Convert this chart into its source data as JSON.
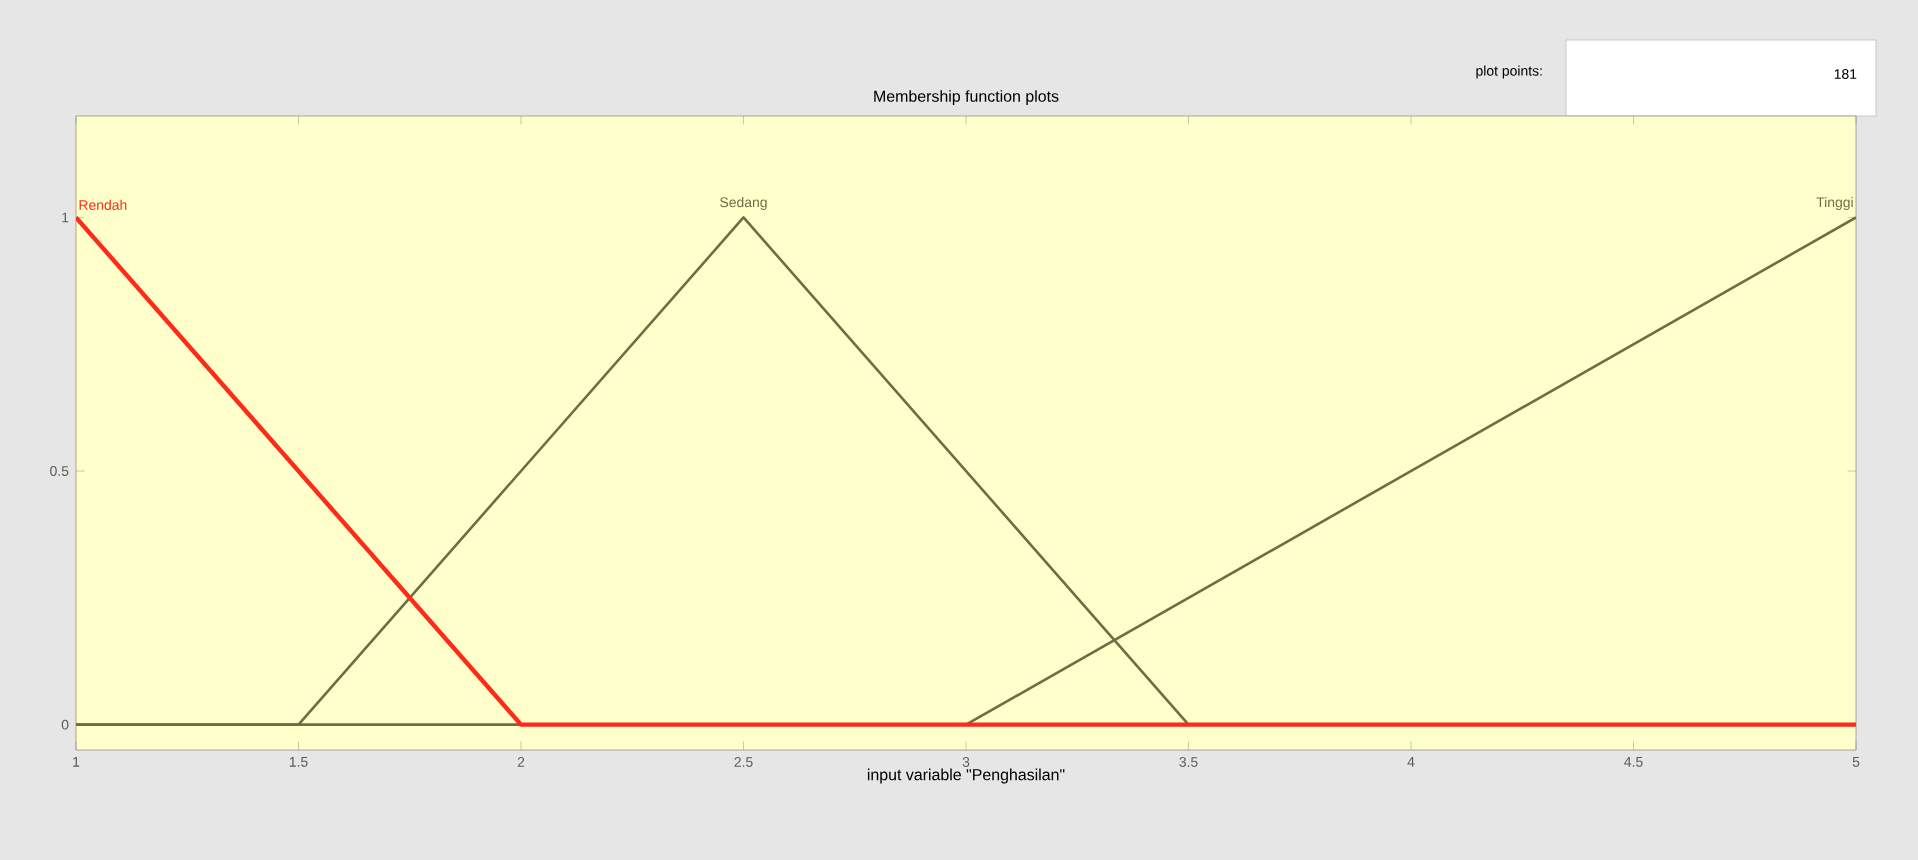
{
  "chart_data": {
    "type": "line",
    "title": "Membership function plots",
    "xlabel": "input variable \"Penghasilan\"",
    "annotations": [
      "plot points:",
      "181"
    ],
    "xlim": [
      1,
      5
    ],
    "ylim": [
      -0.05,
      1.2
    ],
    "xticks": [
      1,
      1.5,
      2,
      2.5,
      3,
      3.5,
      4,
      4.5,
      5
    ],
    "yticks": [
      0,
      0.5,
      1
    ],
    "series": [
      {
        "name": "Rendah",
        "color": "#ff2a1a",
        "x": [
          1,
          2,
          5
        ],
        "values": [
          1,
          0,
          0
        ]
      },
      {
        "name": "Sedang",
        "color": "#6e6e45",
        "x": [
          1,
          1.5,
          2.5,
          3.5,
          5
        ],
        "values": [
          0,
          0,
          1,
          0,
          0
        ]
      },
      {
        "name": "Tinggi",
        "color": "#6e6e45",
        "x": [
          1,
          3,
          5
        ],
        "values": [
          0,
          0,
          1
        ]
      }
    ]
  }
}
